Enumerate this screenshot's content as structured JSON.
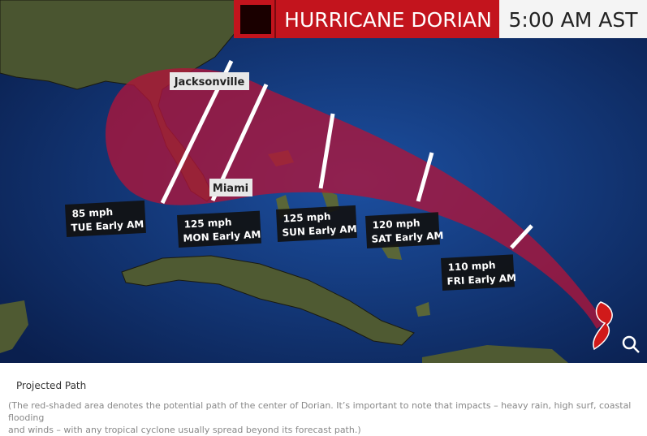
{
  "header": {
    "title": "HURRICANE DORIAN",
    "time": "5:00 AM AST"
  },
  "map": {
    "cities": [
      "Jacksonville",
      "Miami"
    ],
    "forecast_points": [
      {
        "speed": "85 mph",
        "time": "TUE Early AM"
      },
      {
        "speed": "125 mph",
        "time": "MON Early AM"
      },
      {
        "speed": "125 mph",
        "time": "SUN Early AM"
      },
      {
        "speed": "120 mph",
        "time": "SAT Early AM"
      },
      {
        "speed": "110 mph",
        "time": "FRI Early AM"
      }
    ]
  },
  "caption": {
    "title": "Projected Path",
    "text_lines": [
      "(The red-shaded area denotes the potential path of the center of Dorian. It’s important to note that impacts – heavy rain, high surf, coastal flooding",
      "and winds – with any tropical cyclone usually spread beyond its forecast path.)"
    ]
  }
}
